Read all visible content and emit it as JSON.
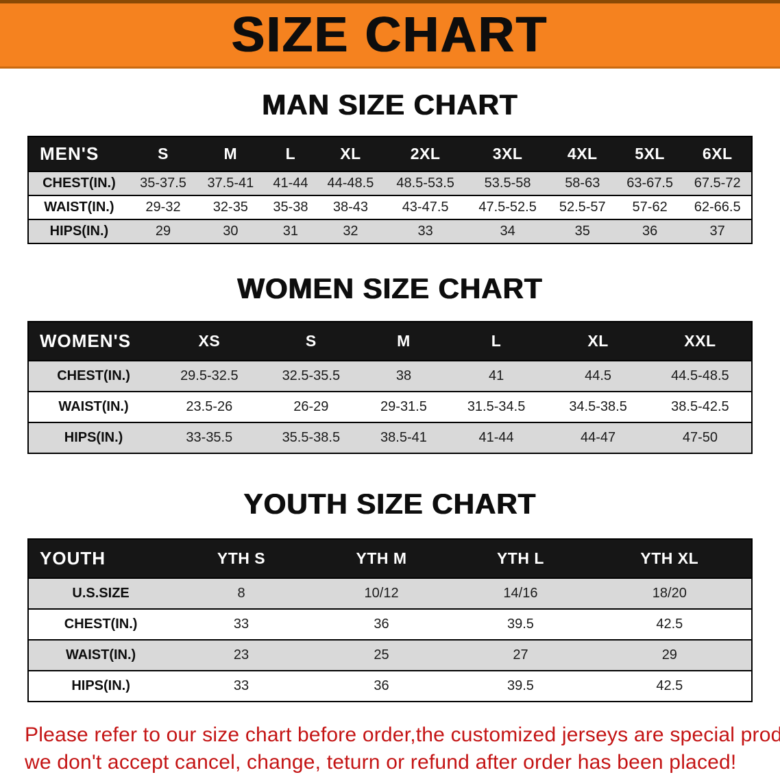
{
  "banner": {
    "title": "SIZE CHART",
    "bg_color": "#f5821f",
    "text_color": "#0d0d0d"
  },
  "sections": {
    "men": {
      "heading": "MAN SIZE CHART",
      "table": {
        "header": [
          "MEN'S",
          "S",
          "M",
          "L",
          "XL",
          "2XL",
          "3XL",
          "4XL",
          "5XL",
          "6XL"
        ],
        "rows": [
          {
            "label": "CHEST(IN.)",
            "values": [
              "35-37.5",
              "37.5-41",
              "41-44",
              "44-48.5",
              "48.5-53.5",
              "53.5-58",
              "58-63",
              "63-67.5",
              "67.5-72"
            ]
          },
          {
            "label": "WAIST(IN.)",
            "values": [
              "29-32",
              "32-35",
              "35-38",
              "38-43",
              "43-47.5",
              "47.5-52.5",
              "52.5-57",
              "57-62",
              "62-66.5"
            ]
          },
          {
            "label": "HIPS(IN.)",
            "values": [
              "29",
              "30",
              "31",
              "32",
              "33",
              "34",
              "35",
              "36",
              "37"
            ]
          }
        ]
      }
    },
    "women": {
      "heading": "WOMEN SIZE CHART",
      "table": {
        "header": [
          "WOMEN'S",
          "XS",
          "S",
          "M",
          "L",
          "XL",
          "XXL"
        ],
        "rows": [
          {
            "label": "CHEST(IN.)",
            "values": [
              "29.5-32.5",
              "32.5-35.5",
              "38",
              "41",
              "44.5",
              "44.5-48.5"
            ]
          },
          {
            "label": "WAIST(IN.)",
            "values": [
              "23.5-26",
              "26-29",
              "29-31.5",
              "31.5-34.5",
              "34.5-38.5",
              "38.5-42.5"
            ]
          },
          {
            "label": "HIPS(IN.)",
            "values": [
              "33-35.5",
              "35.5-38.5",
              "38.5-41",
              "41-44",
              "44-47",
              "47-50"
            ]
          }
        ]
      }
    },
    "youth": {
      "heading": "YOUTH SIZE CHART",
      "table": {
        "header": [
          "YOUTH",
          "YTH S",
          "YTH M",
          "YTH L",
          "YTH XL"
        ],
        "rows": [
          {
            "label": "U.S.SIZE",
            "values": [
              "8",
              "10/12",
              "14/16",
              "18/20"
            ]
          },
          {
            "label": "CHEST(IN.)",
            "values": [
              "33",
              "36",
              "39.5",
              "42.5"
            ]
          },
          {
            "label": "WAIST(IN.)",
            "values": [
              "23",
              "25",
              "27",
              "29"
            ]
          },
          {
            "label": "HIPS(IN.)",
            "values": [
              "33",
              "36",
              "39.5",
              "42.5"
            ]
          }
        ]
      }
    }
  },
  "footer_note": {
    "line1": "Please refer to our size chart before order,the customized jerseys are special products,",
    "line2": "we don't accept cancel, change, teturn or refund after order has been placed!",
    "color": "#c41414"
  }
}
